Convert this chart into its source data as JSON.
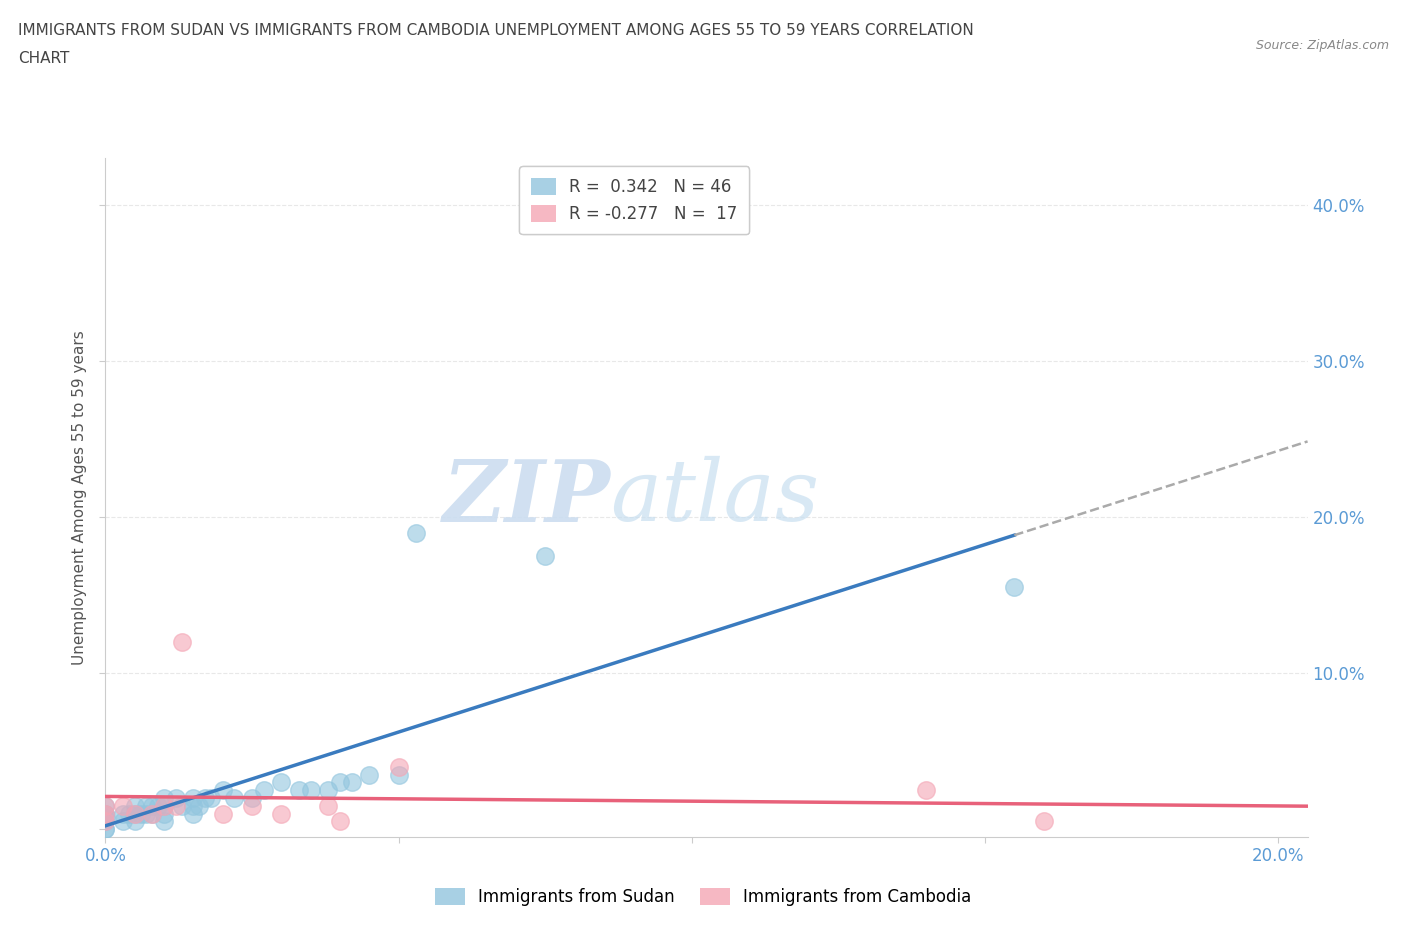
{
  "title_line1": "IMMIGRANTS FROM SUDAN VS IMMIGRANTS FROM CAMBODIA UNEMPLOYMENT AMONG AGES 55 TO 59 YEARS CORRELATION",
  "title_line2": "CHART",
  "source": "Source: ZipAtlas.com",
  "ylabel": "Unemployment Among Ages 55 to 59 years",
  "xlim": [
    0.0,
    0.205
  ],
  "ylim": [
    -0.005,
    0.43
  ],
  "xticks": [
    0.0,
    0.05,
    0.1,
    0.15,
    0.2
  ],
  "yticks": [
    0.0,
    0.1,
    0.2,
    0.3,
    0.4
  ],
  "xticklabels": [
    "0.0%",
    "",
    "",
    "",
    "20.0%"
  ],
  "yticklabels": [
    "",
    "10.0%",
    "20.0%",
    "30.0%",
    "40.0%"
  ],
  "sudan_color": "#92c5de",
  "cambodia_color": "#f4a6b5",
  "sudan_line_color": "#3a7bbf",
  "cambodia_line_color": "#e8617a",
  "sudan_R": 0.342,
  "sudan_N": 46,
  "cambodia_R": -0.277,
  "cambodia_N": 17,
  "watermark_zip": "ZIP",
  "watermark_atlas": "atlas",
  "sudan_points_x": [
    0.0,
    0.0,
    0.0,
    0.0,
    0.0,
    0.0,
    0.0,
    0.003,
    0.003,
    0.004,
    0.005,
    0.005,
    0.005,
    0.006,
    0.007,
    0.007,
    0.008,
    0.008,
    0.009,
    0.01,
    0.01,
    0.01,
    0.01,
    0.012,
    0.013,
    0.015,
    0.015,
    0.015,
    0.016,
    0.017,
    0.018,
    0.02,
    0.022,
    0.025,
    0.027,
    0.03,
    0.033,
    0.035,
    0.038,
    0.04,
    0.042,
    0.045,
    0.05,
    0.053,
    0.075,
    0.155
  ],
  "sudan_points_y": [
    0.0,
    0.0,
    0.005,
    0.007,
    0.01,
    0.01,
    0.015,
    0.005,
    0.01,
    0.01,
    0.005,
    0.01,
    0.015,
    0.01,
    0.01,
    0.015,
    0.01,
    0.015,
    0.015,
    0.005,
    0.01,
    0.015,
    0.02,
    0.02,
    0.015,
    0.01,
    0.015,
    0.02,
    0.015,
    0.02,
    0.02,
    0.025,
    0.02,
    0.02,
    0.025,
    0.03,
    0.025,
    0.025,
    0.025,
    0.03,
    0.03,
    0.035,
    0.035,
    0.19,
    0.175,
    0.155
  ],
  "cambodia_points_x": [
    0.0,
    0.0,
    0.0,
    0.003,
    0.005,
    0.008,
    0.01,
    0.012,
    0.013,
    0.02,
    0.025,
    0.03,
    0.038,
    0.04,
    0.05,
    0.14,
    0.16
  ],
  "cambodia_points_y": [
    0.005,
    0.01,
    0.015,
    0.015,
    0.01,
    0.01,
    0.015,
    0.015,
    0.12,
    0.01,
    0.015,
    0.01,
    0.015,
    0.005,
    0.04,
    0.025,
    0.005
  ],
  "bg_color": "#ffffff",
  "grid_color": "#e8e8e8"
}
